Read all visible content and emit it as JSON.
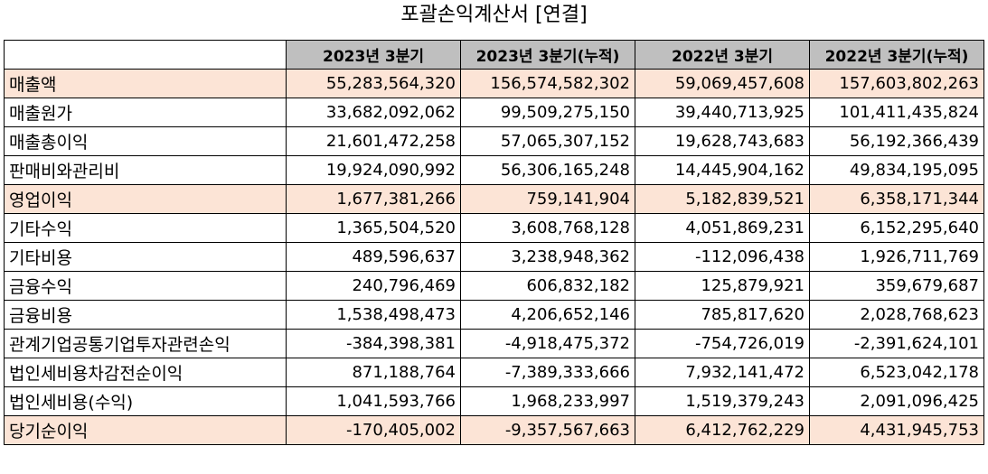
{
  "title": "포괄손익계산서 [연결]",
  "columns": [
    "",
    "2023년 3분기",
    "2023년 3분기(누적)",
    "2022년 3분기",
    "2022년 3분기(누적)"
  ],
  "rows": [
    {
      "label": "매출액",
      "highlight": true,
      "values": [
        "55,283,564,320",
        "156,574,582,302",
        "59,069,457,608",
        "157,603,802,263"
      ]
    },
    {
      "label": "매출원가",
      "highlight": false,
      "values": [
        "33,682,092,062",
        "99,509,275,150",
        "39,440,713,925",
        "101,411,435,824"
      ]
    },
    {
      "label": "매출총이익",
      "highlight": false,
      "values": [
        "21,601,472,258",
        "57,065,307,152",
        "19,628,743,683",
        "56,192,366,439"
      ]
    },
    {
      "label": "판매비와관리비",
      "highlight": false,
      "values": [
        "19,924,090,992",
        "56,306,165,248",
        "14,445,904,162",
        "49,834,195,095"
      ]
    },
    {
      "label": "영업이익",
      "highlight": true,
      "values": [
        "1,677,381,266",
        "759,141,904",
        "5,182,839,521",
        "6,358,171,344"
      ]
    },
    {
      "label": "기타수익",
      "highlight": false,
      "values": [
        "1,365,504,520",
        "3,608,768,128",
        "4,051,869,231",
        "6,152,295,640"
      ]
    },
    {
      "label": "기타비용",
      "highlight": false,
      "values": [
        "489,596,637",
        "3,238,948,362",
        "-112,096,438",
        "1,926,711,769"
      ]
    },
    {
      "label": "금융수익",
      "highlight": false,
      "values": [
        "240,796,469",
        "606,832,182",
        "125,879,921",
        "359,679,687"
      ]
    },
    {
      "label": "금융비용",
      "highlight": false,
      "values": [
        "1,538,498,473",
        "4,206,652,146",
        "785,817,620",
        "2,028,768,623"
      ]
    },
    {
      "label": "관계기업공통기업투자관련손익",
      "highlight": false,
      "values": [
        "-384,398,381",
        "-4,918,475,372",
        "-754,726,019",
        "-2,391,624,101"
      ]
    },
    {
      "label": "법인세비용차감전순이익",
      "highlight": false,
      "values": [
        "871,188,764",
        "-7,389,333,666",
        "7,932,141,472",
        "6,523,042,178"
      ]
    },
    {
      "label": "법인세비용(수익)",
      "highlight": false,
      "values": [
        "1,041,593,766",
        "1,968,233,997",
        "1,519,379,243",
        "2,091,096,425"
      ]
    },
    {
      "label": "당기순이익",
      "highlight": true,
      "values": [
        "-170,405,002",
        "-9,357,567,663",
        "6,412,762,229",
        "4,431,945,753"
      ]
    }
  ]
}
